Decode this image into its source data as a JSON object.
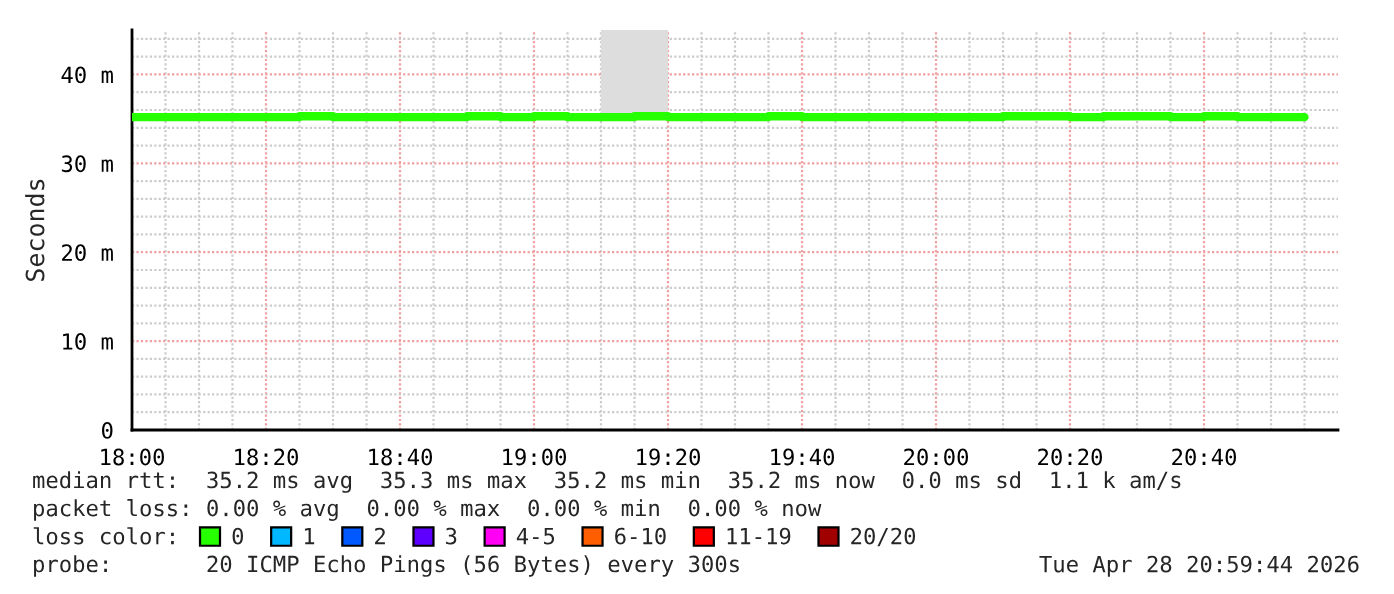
{
  "chart_data": {
    "type": "step",
    "ylabel": "Seconds",
    "legend_title": "loss color:",
    "x": [
      18,
      18.0833,
      18.1667,
      18.25,
      18.3333,
      18.4167,
      18.5,
      18.5833,
      18.6667,
      18.75,
      18.8333,
      18.9167,
      19,
      19.0833,
      19.1667,
      19.25,
      19.3333,
      19.4167,
      19.5,
      19.5833,
      19.6667,
      19.75,
      19.8333,
      19.9167,
      20,
      20.0833,
      20.1667,
      20.25,
      20.3333,
      20.4167,
      20.5,
      20.5833,
      20.6667,
      20.75,
      20.8333,
      20.9167
    ],
    "series": [
      {
        "name": "0",
        "color": "#26ff00",
        "values": [
          35.2,
          35.2,
          35.2,
          35.2,
          35.2,
          35.3,
          35.2,
          35.2,
          35.2,
          35.2,
          35.3,
          35.2,
          35.3,
          35.2,
          35.2,
          35.3,
          35.2,
          35.2,
          35.2,
          35.3,
          35.2,
          35.2,
          35.2,
          35.2,
          35.2,
          35.2,
          35.3,
          35.3,
          35.2,
          35.3,
          35.3,
          35.2,
          35.3,
          35.2,
          35.2,
          35.2
        ]
      },
      {
        "color": "#dddddd",
        "x": [
          19.1667,
          19.3333
        ],
        "values": [
          null,
          null
        ],
        "lower": [
          35.4,
          35.4
        ],
        "upper": [
          45,
          45
        ]
      },
      {
        "name": "1",
        "color": "#00b8ff",
        "values": [
          null,
          null,
          null,
          null,
          null,
          null,
          null,
          null,
          null,
          null,
          null,
          null,
          null,
          null,
          null,
          null,
          null,
          null,
          null,
          null,
          null,
          null,
          null,
          null,
          null,
          null,
          null,
          null,
          null,
          null,
          null,
          null,
          null,
          null,
          null,
          null
        ]
      },
      {
        "name": "2",
        "color": "#0059ff",
        "values": [
          null,
          null,
          null,
          null,
          null,
          null,
          null,
          null,
          null,
          null,
          null,
          null,
          null,
          null,
          null,
          null,
          null,
          null,
          null,
          null,
          null,
          null,
          null,
          null,
          null,
          null,
          null,
          null,
          null,
          null,
          null,
          null,
          null,
          null,
          null,
          null
        ]
      },
      {
        "name": "3",
        "color": "#5e00ff",
        "values": [
          null,
          null,
          null,
          null,
          null,
          null,
          null,
          null,
          null,
          null,
          null,
          null,
          null,
          null,
          null,
          null,
          null,
          null,
          null,
          null,
          null,
          null,
          null,
          null,
          null,
          null,
          null,
          null,
          null,
          null,
          null,
          null,
          null,
          null,
          null,
          null
        ]
      },
      {
        "name": "4-5",
        "color": "#ff00f5",
        "values": [
          null,
          null,
          null,
          null,
          null,
          null,
          null,
          null,
          null,
          null,
          null,
          null,
          null,
          null,
          null,
          null,
          null,
          null,
          null,
          null,
          null,
          null,
          null,
          null,
          null,
          null,
          null,
          null,
          null,
          null,
          null,
          null,
          null,
          null,
          null,
          null
        ]
      },
      {
        "name": "6-10",
        "color": "#ff5e00",
        "values": [
          null,
          null,
          null,
          null,
          null,
          null,
          null,
          null,
          null,
          null,
          null,
          null,
          null,
          null,
          null,
          null,
          null,
          null,
          null,
          null,
          null,
          null,
          null,
          null,
          null,
          null,
          null,
          null,
          null,
          null,
          null,
          null,
          null,
          null,
          null,
          null
        ]
      },
      {
        "name": "11-19",
        "color": "#ff0000",
        "values": [
          null,
          null,
          null,
          null,
          null,
          null,
          null,
          null,
          null,
          null,
          null,
          null,
          null,
          null,
          null,
          null,
          null,
          null,
          null,
          null,
          null,
          null,
          null,
          null,
          null,
          null,
          null,
          null,
          null,
          null,
          null,
          null,
          null,
          null,
          null,
          null
        ]
      },
      {
        "name": "20/20",
        "color": "#a00000",
        "values": [
          null,
          null,
          null,
          null,
          null,
          null,
          null,
          null,
          null,
          null,
          null,
          null,
          null,
          null,
          null,
          null,
          null,
          null,
          null,
          null,
          null,
          null,
          null,
          null,
          null,
          null,
          null,
          null,
          null,
          null,
          null,
          null,
          null,
          null,
          null,
          null
        ]
      }
    ],
    "xlim": [
      18,
      21
    ],
    "ylim": [
      0,
      45
    ],
    "xticks": [
      {
        "value": 18,
        "label": "18:00"
      },
      {
        "value": 18.3333,
        "label": "18:20"
      },
      {
        "value": 18.6667,
        "label": "18:40"
      },
      {
        "value": 19,
        "label": "19:00"
      },
      {
        "value": 19.3333,
        "label": "19:20"
      },
      {
        "value": 19.6667,
        "label": "19:40"
      },
      {
        "value": 20,
        "label": "20:00"
      },
      {
        "value": 20.3333,
        "label": "20:20"
      },
      {
        "value": 20.6667,
        "label": "20:40"
      }
    ],
    "yticks": [
      0,
      {
        "value": 10,
        "label": "10 m"
      },
      {
        "value": 20,
        "label": "20 m"
      },
      {
        "value": 30,
        "label": "30 m"
      },
      {
        "value": 40,
        "label": "40 m"
      }
    ],
    "grid": true,
    "legend": "bottom",
    "annotations": [
      "median rtt:  35.2 ms avg  35.3 ms max  35.2 ms min  35.2 ms now  0.0 ms sd  1.1 k am/s",
      "packet loss: 0.00 % avg  0.00 % max  0.00 % min  0.00 % now",
      "probe:       20 ICMP Echo Pings (56 Bytes) every 300s",
      "Tue Apr 28 20:59:44 2026"
    ]
  }
}
